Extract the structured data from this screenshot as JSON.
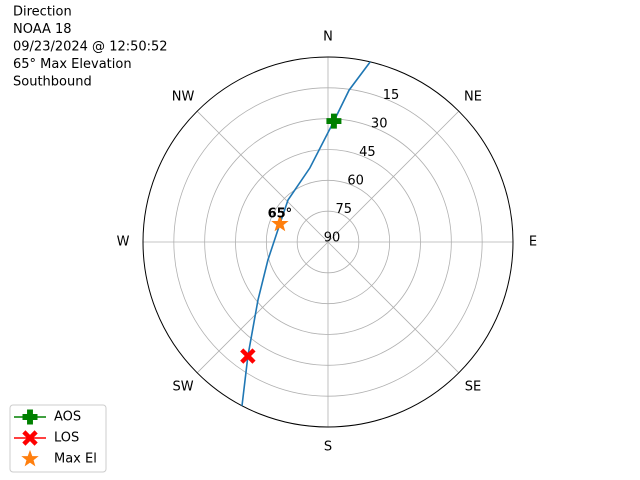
{
  "chart_data": {
    "type": "polar",
    "title": [
      "Direction",
      "NOAA 18",
      "09/23/2024 @ 12:50:52",
      "65° Max Elevation",
      "Southbound"
    ],
    "annotation": "65°",
    "rlim": [
      90,
      0
    ],
    "rticks": [
      15,
      30,
      45,
      60,
      75,
      90
    ],
    "thetaticks": [
      {
        "value": 0,
        "label": "N"
      },
      {
        "value": 45,
        "label": "NE"
      },
      {
        "value": 90,
        "label": "E"
      },
      {
        "value": 135,
        "label": "SE"
      },
      {
        "value": 180,
        "label": "S"
      },
      {
        "value": 225,
        "label": "SW"
      },
      {
        "value": 270,
        "label": "W"
      },
      {
        "value": 315,
        "label": "NW"
      }
    ],
    "grid": true,
    "legend": "lower left",
    "track": {
      "color": "#1f77b4",
      "azimuth": [
        13.2,
        7.9,
        2.8,
        346.3,
        316.4,
        290.6,
        253.3,
        230.4,
        215.1,
        207.7
      ],
      "elevation": [
        0,
        15.4,
        31.1,
        52.9,
        61.8,
        65,
        59.5,
        45.8,
        22.2,
        0
      ]
    },
    "series": [
      {
        "name": "AOS",
        "color": "#008000",
        "marker": "plus",
        "legend_line": true,
        "azimuth": 2.8,
        "elevation": 31.1
      },
      {
        "name": "LOS",
        "color": "#ff0000",
        "marker": "x",
        "legend_line": true,
        "azimuth": 215.1,
        "elevation": 22.2
      },
      {
        "name": "Max El",
        "color": "#ff7f0e",
        "marker": "star",
        "legend_line": false,
        "azimuth": 290.6,
        "elevation": 65
      }
    ]
  }
}
